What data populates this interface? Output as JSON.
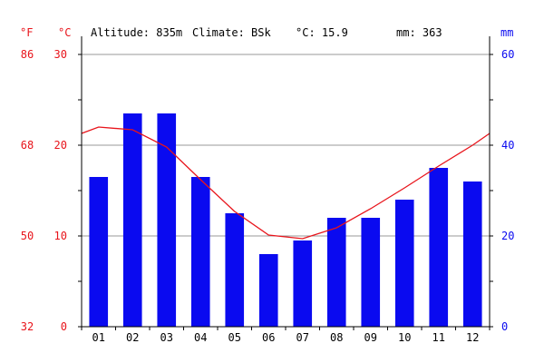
{
  "header": {
    "unit_f": "°F",
    "unit_c": "°C",
    "altitude": "Altitude: 835m",
    "climate": "Climate: BSk",
    "temp": "°C: 15.9",
    "precip": "mm: 363",
    "unit_mm": "mm"
  },
  "colors": {
    "temperature": "#e8141b",
    "precipitation": "#0a0af0",
    "grid": "#999999"
  },
  "chart_data": {
    "type": "bar",
    "categories": [
      "01",
      "02",
      "03",
      "04",
      "05",
      "06",
      "07",
      "08",
      "09",
      "10",
      "11",
      "12"
    ],
    "series": [
      {
        "type": "bar",
        "axis": "right",
        "values": [
          33,
          47,
          47,
          33,
          25,
          16,
          19,
          24,
          24,
          28,
          35,
          32
        ]
      },
      {
        "type": "line",
        "axis": "left",
        "values": [
          22.0,
          21.7,
          19.8,
          16.2,
          12.7,
          10.1,
          9.7,
          10.9,
          13.0,
          15.3,
          17.7,
          20.0
        ],
        "start_value": 21.3,
        "end_value": 21.3
      }
    ],
    "y_left": {
      "ylim": [
        0,
        30
      ],
      "ticks": [
        "0",
        "10",
        "20",
        "30"
      ]
    },
    "y_left_f": {
      "ticks": [
        "32",
        "50",
        "68",
        "86"
      ]
    },
    "y_right": {
      "ylim": [
        0,
        60
      ],
      "ticks": [
        "0",
        "20",
        "40",
        "60"
      ]
    },
    "grid": true
  }
}
